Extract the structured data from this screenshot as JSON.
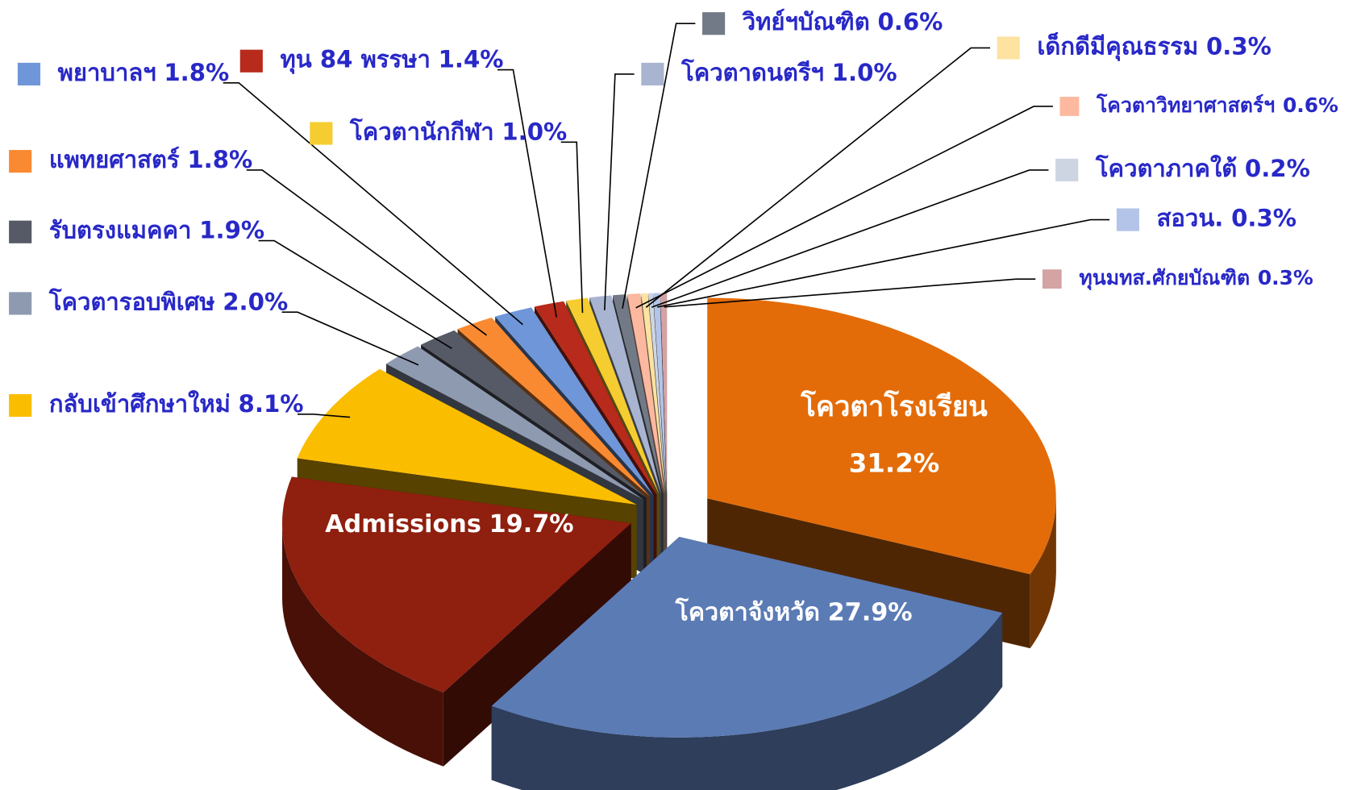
{
  "chart_data": {
    "type": "pie3d",
    "categories": [
      "โควตาโรงเรียน",
      "โควตาจังหวัด",
      "Admissions",
      "กลับเข้าศึกษาใหม่",
      "โควตารอบพิเศษ",
      "รับตรงแมคคา",
      "แพทยศาสตร์",
      "พยาบาลฯ",
      "ทุน 84 พรรษา",
      "โควตานักกีฬา",
      "โควตาดนตรีฯ",
      "วิทย์ฯบัณฑิต",
      "โควตาวิทยาศาสตร์ฯ",
      "เด็กดีมีคุณธรรม",
      "โควตาภาคใต้",
      "สอวน.",
      "ทุนมทส.ศักยบัณฑิต"
    ],
    "values": [
      31.2,
      27.9,
      19.7,
      8.1,
      2.0,
      1.9,
      1.8,
      1.8,
      1.4,
      1.0,
      1.0,
      0.6,
      0.6,
      0.3,
      0.2,
      0.3,
      0.3
    ],
    "value_labels": [
      "31.2%",
      "27.9%",
      "19.7%",
      "8.1%",
      "2.0%",
      "1.9%",
      "1.8%",
      "1.8%",
      "1.4%",
      "1.0%",
      "1.0%",
      "0.6%",
      "0.6%",
      "0.3%",
      "0.2%",
      "0.3%",
      "0.3%"
    ],
    "colors": [
      "#e36c09",
      "#5b7bb5",
      "#8f1f0e",
      "#fbbd00",
      "#8e9ab0",
      "#555a66",
      "#fa8a32",
      "#6f96d8",
      "#b72a1c",
      "#f5cd30",
      "#a9b4d0",
      "#737a87",
      "#fdb8a0",
      "#fde2a0",
      "#cdd5e3",
      "#b4c4e8",
      "#d4a3a3"
    ]
  }
}
